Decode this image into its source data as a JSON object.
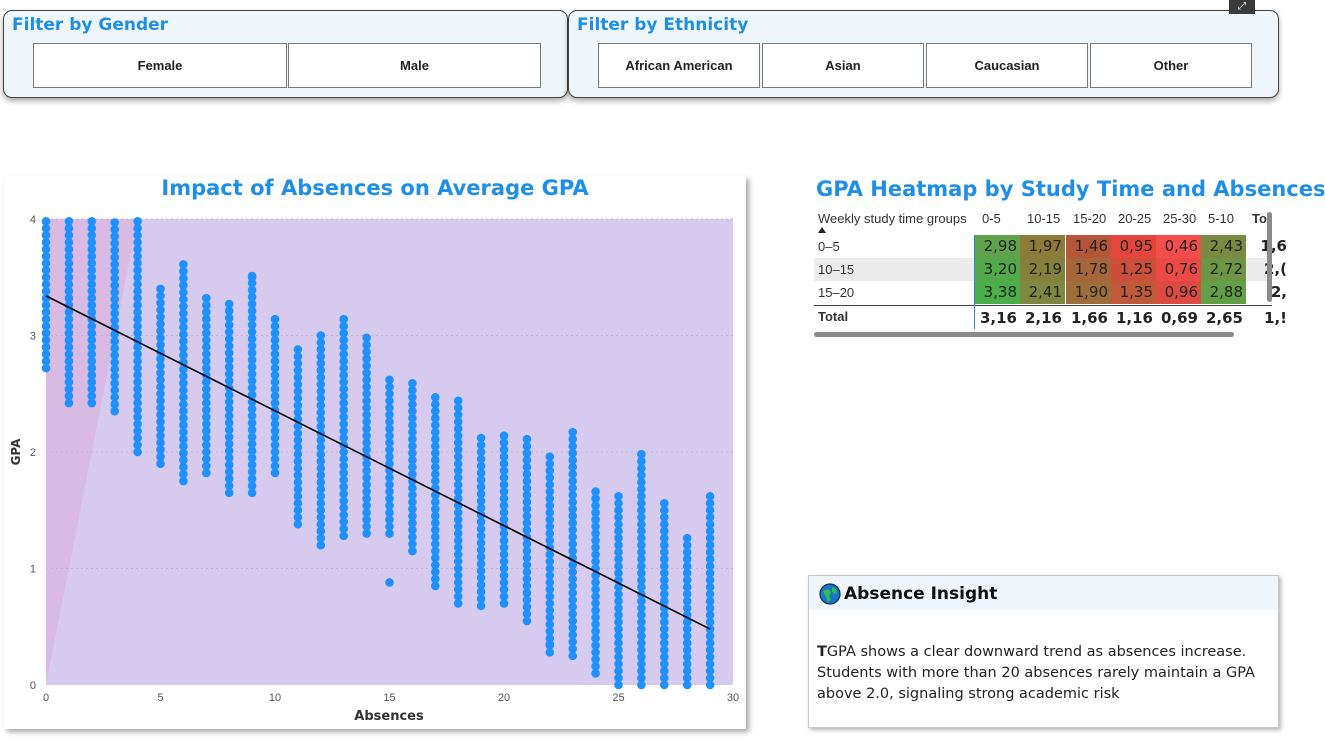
{
  "gender_slicer": {
    "title": "Filter by Gender",
    "options": [
      "Female",
      "Male"
    ]
  },
  "ethnicity_slicer": {
    "title": "Filter by Ethnicity",
    "options": [
      "African American",
      "Asian",
      "Caucasian",
      "Other"
    ]
  },
  "focus_icon": "focus-mode-icon",
  "scatter": {
    "title": "Impact of Absences on Average GPA",
    "chart_data": {
      "type": "scatter",
      "title": "Impact of Absences on Average GPA",
      "xlabel": "Absences",
      "ylabel": "GPA",
      "xlim": [
        0,
        30
      ],
      "ylim": [
        0,
        4
      ],
      "xticks": [
        "0",
        "5",
        "10",
        "15",
        "20",
        "25",
        "30"
      ],
      "yticks": [
        "0",
        "1",
        "2",
        "3",
        "4"
      ],
      "point_color": "#1e90ff",
      "trend_line": {
        "x": [
          0,
          29
        ],
        "y": [
          3.34,
          0.48
        ],
        "color": "#000000"
      },
      "columns": [
        {
          "x": 0,
          "min": 2.72,
          "max": 4.0
        },
        {
          "x": 1,
          "min": 2.42,
          "max": 4.0
        },
        {
          "x": 2,
          "min": 2.42,
          "max": 4.0
        },
        {
          "x": 3,
          "min": 2.35,
          "max": 4.0
        },
        {
          "x": 4,
          "min": 2.0,
          "max": 4.0
        },
        {
          "x": 5,
          "min": 1.9,
          "max": 3.42
        },
        {
          "x": 6,
          "min": 1.75,
          "max": 3.62
        },
        {
          "x": 7,
          "min": 1.82,
          "max": 3.32
        },
        {
          "x": 8,
          "min": 1.65,
          "max": 3.28
        },
        {
          "x": 9,
          "min": 1.65,
          "max": 3.52
        },
        {
          "x": 10,
          "min": 1.82,
          "max": 3.15
        },
        {
          "x": 11,
          "min": 1.38,
          "max": 2.92
        },
        {
          "x": 12,
          "min": 1.2,
          "max": 3.02
        },
        {
          "x": 13,
          "min": 1.28,
          "max": 3.15
        },
        {
          "x": 14,
          "min": 1.3,
          "max": 3.0
        },
        {
          "x": 15,
          "min": 1.3,
          "max": 2.65
        },
        {
          "x": 16,
          "min": 1.15,
          "max": 2.62
        },
        {
          "x": 17,
          "min": 0.85,
          "max": 2.5
        },
        {
          "x": 18,
          "min": 0.7,
          "max": 2.45
        },
        {
          "x": 19,
          "min": 0.68,
          "max": 2.15
        },
        {
          "x": 20,
          "min": 0.7,
          "max": 2.15
        },
        {
          "x": 21,
          "min": 0.55,
          "max": 2.12
        },
        {
          "x": 22,
          "min": 0.28,
          "max": 1.98
        },
        {
          "x": 23,
          "min": 0.25,
          "max": 2.2
        },
        {
          "x": 24,
          "min": 0.1,
          "max": 1.68
        },
        {
          "x": 25,
          "min": 0.0,
          "max": 1.65
        },
        {
          "x": 26,
          "min": 0.0,
          "max": 1.98
        },
        {
          "x": 27,
          "min": 0.0,
          "max": 1.58
        },
        {
          "x": 28,
          "min": 0.0,
          "max": 1.26
        },
        {
          "x": 29,
          "min": 0.0,
          "max": 1.62
        }
      ],
      "outliers": [
        {
          "x": 15,
          "y": 0.88
        },
        {
          "x": 22,
          "y": 0.35
        },
        {
          "x": 9,
          "y": 3.5
        },
        {
          "x": 26,
          "y": 1.98
        }
      ]
    }
  },
  "heatmap": {
    "title": "GPA Heatmap by Study Time and Absences",
    "row_header": "Weekly study time groups",
    "sort_icon": "sort-ascending-icon",
    "columns": [
      "0-5",
      "10-15",
      "15-20",
      "20-25",
      "25-30",
      "5-10",
      "Tot"
    ],
    "rows": [
      {
        "label": "0–5",
        "values": [
          "2,98",
          "1,97",
          "1,46",
          "0,95",
          "0,46",
          "2,43",
          "1,6"
        ]
      },
      {
        "label": "10–15",
        "values": [
          "3,20",
          "2,19",
          "1,78",
          "1,25",
          "0,76",
          "2,72",
          "2,("
        ]
      },
      {
        "label": "15–20",
        "values": [
          "3,38",
          "2,41",
          "1,90",
          "1,35",
          "0,96",
          "2,88",
          "2,"
        ]
      }
    ],
    "total": {
      "label": "Total",
      "values": [
        "3,16",
        "2,16",
        "1,66",
        "1,16",
        "0,69",
        "2,65",
        "1,!"
      ]
    },
    "cell_colors": [
      [
        "#5fa34c",
        "#8e7b3a",
        "#b5553a",
        "#e4463e",
        "#f54c4c",
        "#7a8a40"
      ],
      [
        "#52a84a",
        "#86803d",
        "#a7663a",
        "#cd4e3b",
        "#eb4a46",
        "#6e9543"
      ],
      [
        "#4aae49",
        "#7f8841",
        "#9d6e3a",
        "#c0593a",
        "#dc4a41",
        "#62a046"
      ]
    ]
  },
  "insight": {
    "title": "Absence Insight",
    "icon": "globe-icon",
    "lead": "T",
    "body": "GPA shows a clear downward trend as absences increase. Students with more than 20 absences rarely maintain a GPA above 2.0, signaling strong academic risk"
  }
}
